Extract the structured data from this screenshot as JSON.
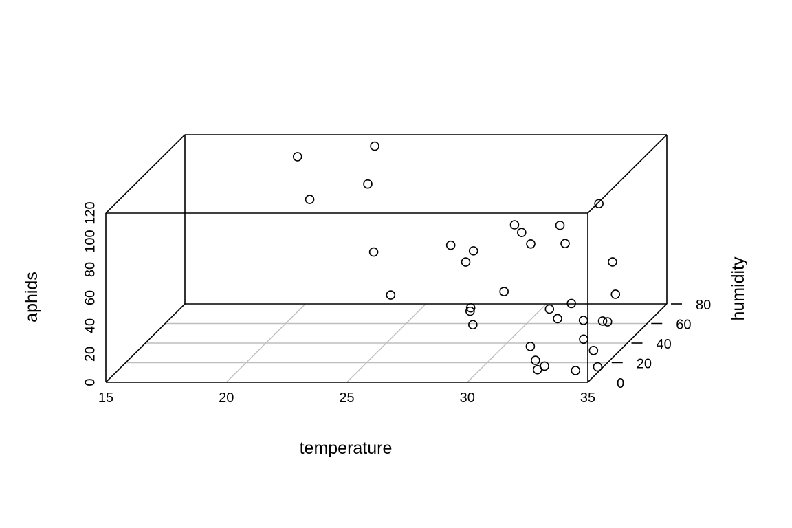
{
  "chart_data": {
    "type": "scatter",
    "projection": "3d",
    "xlabel": "temperature",
    "ylabel": "humidity",
    "zlabel": "aphids",
    "xlim": [
      15,
      35
    ],
    "ylim": [
      0,
      80
    ],
    "zlim": [
      0,
      120
    ],
    "x_ticks": [
      15,
      20,
      25,
      30,
      35
    ],
    "y_ticks": [
      0,
      20,
      40,
      60,
      80
    ],
    "z_ticks": [
      0,
      20,
      40,
      60,
      80,
      100,
      120
    ],
    "x_tick_labels": [
      "15",
      "20",
      "25",
      "30",
      "35"
    ],
    "y_tick_labels": [
      "0",
      "20",
      "40",
      "60",
      "80"
    ],
    "z_tick_labels": [
      "0",
      "20",
      "40",
      "60",
      "80",
      "100",
      "120"
    ],
    "grid": true,
    "points": [
      {
        "x": 20.0,
        "y": 72,
        "z": 110
      },
      {
        "x": 21.0,
        "y": 60,
        "z": 88
      },
      {
        "x": 23.0,
        "y": 77,
        "z": 114
      },
      {
        "x": 23.0,
        "y": 70,
        "z": 92
      },
      {
        "x": 25.5,
        "y": 15,
        "z": 82
      },
      {
        "x": 26.0,
        "y": 20,
        "z": 48
      },
      {
        "x": 28.0,
        "y": 55,
        "z": 55
      },
      {
        "x": 28.5,
        "y": 35,
        "z": 61
      },
      {
        "x": 28.0,
        "y": 32,
        "z": 75
      },
      {
        "x": 28.5,
        "y": 40,
        "z": 25
      },
      {
        "x": 29.0,
        "y": 30,
        "z": 20
      },
      {
        "x": 29.5,
        "y": 60,
        "z": 70
      },
      {
        "x": 30.0,
        "y": 55,
        "z": 68
      },
      {
        "x": 30.5,
        "y": 52,
        "z": 62
      },
      {
        "x": 29.5,
        "y": 15,
        "z": 40
      },
      {
        "x": 30.5,
        "y": 25,
        "z": 47
      },
      {
        "x": 32.0,
        "y": 45,
        "z": 80
      },
      {
        "x": 33.0,
        "y": 60,
        "z": 85
      },
      {
        "x": 32.5,
        "y": 38,
        "z": 72
      },
      {
        "x": 33.0,
        "y": 10,
        "z": 45
      },
      {
        "x": 33.5,
        "y": 20,
        "z": 42
      },
      {
        "x": 32.0,
        "y": 15,
        "z": 15
      },
      {
        "x": 32.5,
        "y": 10,
        "z": 2
      },
      {
        "x": 32.5,
        "y": 8,
        "z": 10
      },
      {
        "x": 33.0,
        "y": 5,
        "z": 8
      },
      {
        "x": 34.0,
        "y": 12,
        "z": 0
      },
      {
        "x": 34.5,
        "y": 18,
        "z": 10
      },
      {
        "x": 34.0,
        "y": 20,
        "z": 30
      },
      {
        "x": 35.0,
        "y": 10,
        "z": 4
      },
      {
        "x": 35.0,
        "y": 25,
        "z": 68
      },
      {
        "x": 35.0,
        "y": 28,
        "z": 43
      },
      {
        "x": 35.0,
        "y": 15,
        "z": 33
      },
      {
        "x": 35.0,
        "y": 20,
        "z": 29
      },
      {
        "x": 34.5,
        "y": 8,
        "z": 25
      },
      {
        "x": 33.5,
        "y": 6,
        "z": 41
      }
    ]
  }
}
